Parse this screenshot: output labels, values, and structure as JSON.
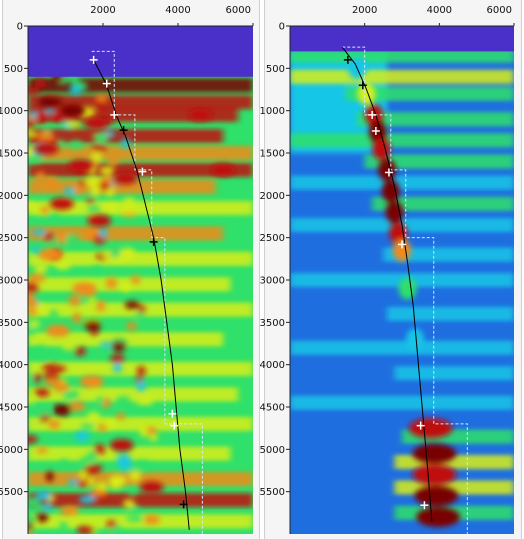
{
  "colors": {
    "background": "#ffffff",
    "no_data_band": "#4a2fc8",
    "colormap": [
      "#2a1fb0",
      "#1f6ee0",
      "#19c6e6",
      "#2fe06a",
      "#d8ef1a",
      "#f08a1a",
      "#c01010",
      "#780000"
    ],
    "pick_marker_light": "#ffffff",
    "pick_marker_dark": "#000000",
    "trend_line": "#000000",
    "interval_lines": "#cfe6ff"
  },
  "chart_data": [
    {
      "type": "heatmap",
      "title": "",
      "x_ticks": [
        "2000",
        "4000",
        "6000"
      ],
      "y_ticks": [
        "0",
        "500",
        "1000",
        "1500",
        "2000",
        "2500",
        "3000",
        "3500",
        "4000",
        "4500",
        "5000",
        "5500"
      ],
      "xlim": [
        0,
        6000
      ],
      "ylim": [
        0,
        6000
      ],
      "y_inverted": true,
      "grid": false,
      "legend": "none",
      "no_data_above_y": 600,
      "trend_line": [
        [
          1750,
          400
        ],
        [
          2100,
          700
        ],
        [
          2350,
          1050
        ],
        [
          2600,
          1300
        ],
        [
          2900,
          1700
        ],
        [
          3100,
          2050
        ],
        [
          3350,
          2500
        ],
        [
          3550,
          3000
        ],
        [
          3700,
          3500
        ],
        [
          3850,
          4000
        ],
        [
          3950,
          4500
        ],
        [
          4050,
          5000
        ],
        [
          4200,
          5500
        ],
        [
          4300,
          5950
        ]
      ],
      "picks": [
        {
          "x": 1750,
          "y": 400,
          "marker": "light"
        },
        {
          "x": 2100,
          "y": 680,
          "marker": "light"
        },
        {
          "x": 2300,
          "y": 1050,
          "marker": "light"
        },
        {
          "x": 2550,
          "y": 1230,
          "marker": "dark"
        },
        {
          "x": 3050,
          "y": 1720,
          "marker": "light"
        },
        {
          "x": 3350,
          "y": 2550,
          "marker": "dark"
        },
        {
          "x": 3850,
          "y": 4580,
          "marker": "light"
        },
        {
          "x": 3900,
          "y": 4720,
          "marker": "light"
        },
        {
          "x": 4150,
          "y": 5650,
          "marker": "dark"
        }
      ],
      "interval_path": [
        [
          1700,
          300
        ],
        [
          2300,
          300
        ],
        [
          2300,
          1050
        ],
        [
          2850,
          1050
        ],
        [
          2850,
          1700
        ],
        [
          3300,
          1700
        ],
        [
          3300,
          2500
        ],
        [
          3650,
          2500
        ],
        [
          3650,
          4700
        ],
        [
          4650,
          4700
        ],
        [
          4650,
          6000
        ]
      ],
      "intensity_bands": [
        {
          "y": 700,
          "x0": 0,
          "x1": 6000,
          "level": 0.95
        },
        {
          "y": 900,
          "x0": 0,
          "x1": 6000,
          "level": 0.85
        },
        {
          "y": 1050,
          "x0": 0,
          "x1": 5600,
          "level": 0.9
        },
        {
          "y": 1300,
          "x0": 0,
          "x1": 5200,
          "level": 0.8
        },
        {
          "y": 1500,
          "x0": 0,
          "x1": 6000,
          "level": 0.7
        },
        {
          "y": 1700,
          "x0": 0,
          "x1": 6000,
          "level": 0.85
        },
        {
          "y": 1900,
          "x0": 0,
          "x1": 5000,
          "level": 0.75
        },
        {
          "y": 2150,
          "x0": 0,
          "x1": 6000,
          "level": 0.6
        },
        {
          "y": 2450,
          "x0": 0,
          "x1": 5200,
          "level": 0.65
        },
        {
          "y": 2750,
          "x0": 0,
          "x1": 6000,
          "level": 0.55
        },
        {
          "y": 3050,
          "x0": 0,
          "x1": 5400,
          "level": 0.5
        },
        {
          "y": 3350,
          "x0": 0,
          "x1": 6000,
          "level": 0.55
        },
        {
          "y": 3700,
          "x0": 0,
          "x1": 5200,
          "level": 0.5
        },
        {
          "y": 4050,
          "x0": 0,
          "x1": 6000,
          "level": 0.5
        },
        {
          "y": 4350,
          "x0": 0,
          "x1": 5600,
          "level": 0.55
        },
        {
          "y": 4700,
          "x0": 0,
          "x1": 6000,
          "level": 0.5
        },
        {
          "y": 5050,
          "x0": 0,
          "x1": 5400,
          "level": 0.6
        },
        {
          "y": 5350,
          "x0": 0,
          "x1": 6000,
          "level": 0.7
        },
        {
          "y": 5600,
          "x0": 0,
          "x1": 6000,
          "level": 0.9
        },
        {
          "y": 5850,
          "x0": 0,
          "x1": 6000,
          "level": 0.6
        }
      ],
      "hotspots": [
        {
          "x": 600,
          "y": 900,
          "level": 0.95
        },
        {
          "x": 1200,
          "y": 1000,
          "level": 0.95
        },
        {
          "x": 1800,
          "y": 1150,
          "level": 0.9
        },
        {
          "x": 500,
          "y": 1450,
          "level": 0.85
        },
        {
          "x": 1400,
          "y": 1650,
          "level": 0.85
        },
        {
          "x": 2600,
          "y": 1800,
          "level": 0.9
        },
        {
          "x": 900,
          "y": 2100,
          "level": 0.8
        },
        {
          "x": 1900,
          "y": 2300,
          "level": 0.8
        },
        {
          "x": 600,
          "y": 2700,
          "level": 0.75
        },
        {
          "x": 1500,
          "y": 3100,
          "level": 0.7
        },
        {
          "x": 800,
          "y": 3600,
          "level": 0.7
        },
        {
          "x": 1700,
          "y": 4200,
          "level": 0.7
        },
        {
          "x": 2500,
          "y": 4950,
          "level": 0.8
        },
        {
          "x": 3300,
          "y": 5450,
          "level": 0.85
        },
        {
          "x": 5200,
          "y": 1700,
          "level": 0.9
        },
        {
          "x": 4600,
          "y": 1050,
          "level": 0.9
        }
      ]
    },
    {
      "type": "heatmap",
      "title": "",
      "x_ticks": [
        "2000",
        "4000",
        "6000"
      ],
      "y_ticks": [
        "0",
        "500",
        "1000",
        "1500",
        "2000",
        "2500",
        "3000",
        "3500",
        "4000",
        "4500",
        "5000",
        "5500"
      ],
      "xlim": [
        0,
        6000
      ],
      "ylim": [
        0,
        6000
      ],
      "y_inverted": true,
      "grid": false,
      "legend": "none",
      "no_data_above_y": 300,
      "trend_line": [
        [
          1400,
          250
        ],
        [
          1750,
          450
        ],
        [
          2050,
          750
        ],
        [
          2300,
          1050
        ],
        [
          2550,
          1450
        ],
        [
          2800,
          1900
        ],
        [
          3000,
          2350
        ],
        [
          3150,
          2800
        ],
        [
          3300,
          3300
        ],
        [
          3400,
          3800
        ],
        [
          3500,
          4300
        ],
        [
          3600,
          4800
        ],
        [
          3700,
          5300
        ],
        [
          3800,
          5850
        ]
      ],
      "picks": [
        {
          "x": 1550,
          "y": 400,
          "marker": "dark"
        },
        {
          "x": 1950,
          "y": 700,
          "marker": "dark"
        },
        {
          "x": 2200,
          "y": 1050,
          "marker": "light"
        },
        {
          "x": 2300,
          "y": 1240,
          "marker": "light"
        },
        {
          "x": 2650,
          "y": 1730,
          "marker": "light"
        },
        {
          "x": 3000,
          "y": 2580,
          "marker": "light"
        },
        {
          "x": 3500,
          "y": 4720,
          "marker": "light"
        },
        {
          "x": 3600,
          "y": 5660,
          "marker": "light"
        }
      ],
      "interval_path": [
        [
          1400,
          250
        ],
        [
          2000,
          250
        ],
        [
          2000,
          1050
        ],
        [
          2700,
          1050
        ],
        [
          2700,
          1700
        ],
        [
          3100,
          1700
        ],
        [
          3100,
          2500
        ],
        [
          3850,
          2500
        ],
        [
          3850,
          4700
        ],
        [
          4750,
          4700
        ],
        [
          4750,
          6000
        ]
      ],
      "ridge": [
        {
          "x": 1800,
          "y": 500,
          "level": 0.35
        },
        {
          "x": 2050,
          "y": 800,
          "level": 0.55
        },
        {
          "x": 2250,
          "y": 1050,
          "level": 0.9
        },
        {
          "x": 2350,
          "y": 1250,
          "level": 0.95
        },
        {
          "x": 2450,
          "y": 1450,
          "level": 0.9
        },
        {
          "x": 2600,
          "y": 1700,
          "level": 0.95
        },
        {
          "x": 2700,
          "y": 1950,
          "level": 0.95
        },
        {
          "x": 2800,
          "y": 2200,
          "level": 0.95
        },
        {
          "x": 2900,
          "y": 2450,
          "level": 0.9
        },
        {
          "x": 3000,
          "y": 2650,
          "level": 0.75
        },
        {
          "x": 3150,
          "y": 3100,
          "level": 0.4
        },
        {
          "x": 3350,
          "y": 3700,
          "level": 0.35
        },
        {
          "x": 3500,
          "y": 4750,
          "level": 0.9
        },
        {
          "x": 3600,
          "y": 5050,
          "level": 0.95
        },
        {
          "x": 3600,
          "y": 5300,
          "level": 0.9
        },
        {
          "x": 3650,
          "y": 5550,
          "level": 0.95
        },
        {
          "x": 3700,
          "y": 5800,
          "level": 0.95
        }
      ],
      "intensity_bands": [
        {
          "y": 350,
          "x0": 0,
          "x1": 6000,
          "level": 0.45
        },
        {
          "y": 600,
          "x0": 0,
          "x1": 6000,
          "level": 0.5
        },
        {
          "y": 800,
          "x0": 1500,
          "x1": 6000,
          "level": 0.45
        },
        {
          "y": 1100,
          "x0": 1800,
          "x1": 6000,
          "level": 0.42
        },
        {
          "y": 1350,
          "x0": 0,
          "x1": 6000,
          "level": 0.38
        },
        {
          "y": 1600,
          "x0": 2000,
          "x1": 6000,
          "level": 0.4
        },
        {
          "y": 1850,
          "x0": 0,
          "x1": 6000,
          "level": 0.35
        },
        {
          "y": 2100,
          "x0": 2200,
          "x1": 6000,
          "level": 0.38
        },
        {
          "y": 2350,
          "x0": 0,
          "x1": 6000,
          "level": 0.35
        },
        {
          "y": 2700,
          "x0": 2500,
          "x1": 6000,
          "level": 0.33
        },
        {
          "y": 3000,
          "x0": 0,
          "x1": 6000,
          "level": 0.3
        },
        {
          "y": 3400,
          "x0": 2600,
          "x1": 6000,
          "level": 0.3
        },
        {
          "y": 3800,
          "x0": 0,
          "x1": 6000,
          "level": 0.3
        },
        {
          "y": 4100,
          "x0": 2800,
          "x1": 6000,
          "level": 0.35
        },
        {
          "y": 4450,
          "x0": 0,
          "x1": 6000,
          "level": 0.32
        },
        {
          "y": 4850,
          "x0": 3000,
          "x1": 6000,
          "level": 0.4
        },
        {
          "y": 5150,
          "x0": 2800,
          "x1": 6000,
          "level": 0.5
        },
        {
          "y": 5450,
          "x0": 2800,
          "x1": 6000,
          "level": 0.5
        },
        {
          "y": 5750,
          "x0": 2800,
          "x1": 6000,
          "level": 0.45
        }
      ]
    }
  ]
}
